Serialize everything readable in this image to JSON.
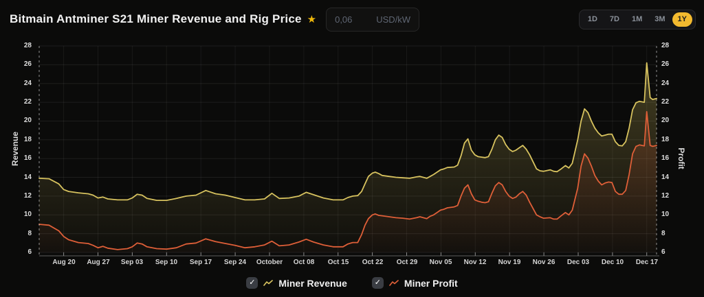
{
  "header": {
    "title": "Bitmain Antminer S21 Miner Revenue and Rig Price",
    "favorite_icon": "star",
    "star_color": "#f0b90b",
    "power_cost": {
      "value": "0,06",
      "unit": "USD/kW"
    },
    "ranges": [
      "1D",
      "7D",
      "1M",
      "3M",
      "1Y"
    ],
    "active_range": "1Y",
    "active_range_color": "#f3ba2f"
  },
  "legend": {
    "items": [
      {
        "label": "Miner Revenue",
        "checked": true,
        "color": "#d8c35f"
      },
      {
        "label": "Miner Profit",
        "checked": true,
        "color": "#df5f38"
      }
    ]
  },
  "chart_data": {
    "type": "line",
    "title": "Bitmain Antminer S21 Miner Revenue and Rig Price",
    "ylabel_left": "Revenue",
    "ylabel_right": "Profit",
    "ylim": [
      6,
      28
    ],
    "y_ticks": [
      28,
      26,
      24,
      22,
      20,
      18,
      16,
      14,
      12,
      10,
      8,
      6
    ],
    "grid": true,
    "legend_position": "bottom",
    "x_unit": "days since Aug 15",
    "x_domain": [
      0,
      126
    ],
    "x_tick_days": [
      5,
      12,
      19,
      26,
      33,
      40,
      47,
      54,
      61,
      68,
      75,
      82,
      89,
      96,
      103,
      110,
      117,
      124
    ],
    "x_tick_labels": [
      "Aug 20",
      "Aug 27",
      "Sep 03",
      "Sep 10",
      "Sep 17",
      "Sep 24",
      "October",
      "Oct 08",
      "Oct 15",
      "Oct 22",
      "Oct 29",
      "Nov 05",
      "Nov 12",
      "Nov 19",
      "Nov 26",
      "Dec 03",
      "Dec 10",
      "Dec 17"
    ],
    "x": [
      0,
      2,
      4,
      5,
      6,
      8,
      10,
      11,
      12,
      13,
      14,
      16,
      18,
      19,
      20,
      21,
      22,
      24,
      26,
      28,
      30,
      32,
      34,
      36,
      38,
      40,
      42,
      44,
      46,
      47.5,
      49,
      51,
      53,
      54.5,
      56,
      58,
      60,
      62,
      63,
      64,
      65,
      65.8,
      66.5,
      67.2,
      68,
      68.6,
      69.3,
      70,
      71.4,
      72.8,
      74.2,
      75.6,
      77,
      77.7,
      79.1,
      79.8,
      80.5,
      81.2,
      81.9,
      82.6,
      83.3,
      84.7,
      85.4,
      86.1,
      86.8,
      87.5,
      88.2,
      88.9,
      89.6,
      90.3,
      91,
      91.7,
      92.4,
      93.1,
      93.8,
      94.5,
      95.2,
      95.9,
      96.6,
      97.3,
      98,
      98.7,
      99.4,
      100.1,
      101.5,
      102.2,
      102.9,
      104.3,
      105,
      105.7,
      106.4,
      107.4,
      108.1,
      108.8,
      109.9,
      110.6,
      111.3,
      112,
      112.7,
      113.4,
      114.1,
      114.8,
      115.5,
      116.2,
      116.9,
      117.6,
      118.3,
      119,
      119.7,
      120.4,
      121.1,
      121.8,
      122.5,
      123.5,
      124,
      124.7,
      125.2,
      126
    ],
    "series": [
      {
        "name": "Miner Revenue",
        "color": "#d8c35f",
        "values": [
          13.9,
          13.85,
          13.3,
          12.7,
          12.5,
          12.35,
          12.25,
          12.1,
          11.8,
          11.9,
          11.7,
          11.6,
          11.6,
          11.8,
          12.2,
          12.1,
          11.75,
          11.55,
          11.55,
          11.75,
          12.0,
          12.1,
          12.6,
          12.25,
          12.1,
          11.85,
          11.6,
          11.6,
          11.7,
          12.3,
          11.75,
          11.8,
          12.0,
          12.4,
          12.15,
          11.8,
          11.6,
          11.6,
          11.85,
          12.0,
          12.05,
          12.5,
          13.3,
          14.1,
          14.45,
          14.55,
          14.4,
          14.2,
          14.1,
          14.0,
          13.95,
          13.9,
          14.05,
          14.1,
          13.9,
          14.1,
          14.3,
          14.55,
          14.8,
          14.9,
          15.05,
          15.1,
          15.3,
          16.3,
          17.65,
          18.1,
          16.9,
          16.4,
          16.2,
          16.15,
          16.1,
          16.2,
          17.0,
          18.0,
          18.5,
          18.25,
          17.5,
          17.0,
          16.75,
          16.9,
          17.15,
          17.4,
          17.0,
          16.4,
          14.9,
          14.7,
          14.65,
          14.8,
          14.65,
          14.6,
          14.85,
          15.25,
          15.0,
          15.5,
          18.0,
          20.0,
          21.3,
          20.9,
          20.0,
          19.25,
          18.75,
          18.4,
          18.5,
          18.6,
          18.6,
          17.8,
          17.4,
          17.35,
          17.8,
          19.25,
          21.2,
          21.95,
          22.1,
          22.0,
          26.2,
          22.5,
          22.3,
          22.4
        ]
      },
      {
        "name": "Miner Profit",
        "color": "#df5f38",
        "values": [
          9.0,
          8.9,
          8.3,
          7.7,
          7.35,
          7.05,
          6.95,
          6.75,
          6.5,
          6.65,
          6.45,
          6.3,
          6.4,
          6.6,
          7.0,
          6.9,
          6.6,
          6.4,
          6.35,
          6.5,
          6.9,
          7.0,
          7.45,
          7.15,
          6.95,
          6.75,
          6.5,
          6.6,
          6.8,
          7.2,
          6.7,
          6.8,
          7.1,
          7.4,
          7.1,
          6.8,
          6.6,
          6.6,
          6.9,
          7.05,
          7.05,
          7.9,
          8.9,
          9.6,
          10.0,
          10.1,
          9.95,
          9.9,
          9.8,
          9.7,
          9.65,
          9.55,
          9.7,
          9.8,
          9.6,
          9.85,
          10.0,
          10.25,
          10.5,
          10.6,
          10.75,
          10.85,
          11.0,
          12.0,
          12.85,
          13.2,
          12.25,
          11.6,
          11.45,
          11.35,
          11.3,
          11.4,
          12.3,
          13.1,
          13.45,
          13.2,
          12.5,
          12.0,
          11.75,
          11.9,
          12.25,
          12.5,
          12.1,
          11.35,
          10.0,
          9.8,
          9.65,
          9.7,
          9.55,
          9.55,
          9.85,
          10.25,
          10.0,
          10.5,
          12.85,
          15.2,
          16.5,
          16.05,
          15.2,
          14.2,
          13.6,
          13.2,
          13.4,
          13.5,
          13.45,
          12.5,
          12.2,
          12.2,
          12.6,
          14.3,
          16.5,
          17.3,
          17.45,
          17.35,
          21.0,
          17.4,
          17.3,
          17.4
        ]
      }
    ]
  }
}
